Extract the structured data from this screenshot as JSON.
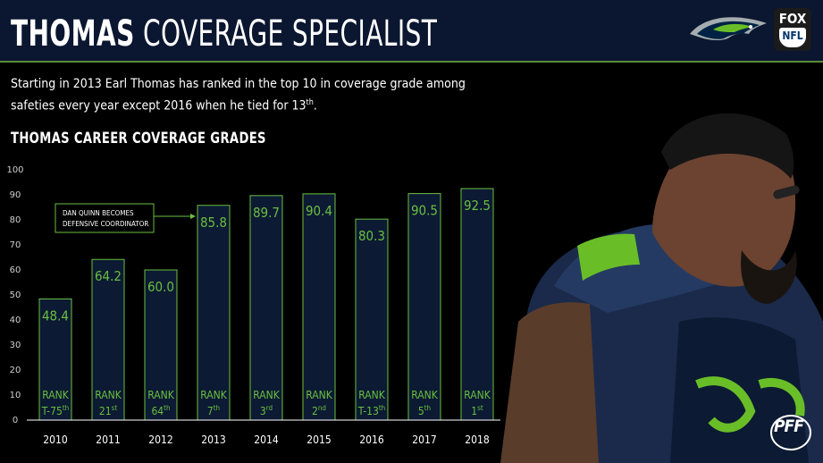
{
  "header": {
    "title_bold": "THOMAS",
    "title_light": "COVERAGE SPECIALIST",
    "network_logo_top": "FOX",
    "network_logo_bottom": "NFL",
    "team_logo": "seahawks-logo"
  },
  "description": {
    "text": "Starting in 2013 Earl Thomas has ranked in the top 10 in coverage grade among safeties every year except 2016 when he tied for 13",
    "superscript": "th",
    "end": "."
  },
  "annotation": {
    "line1": "DAN QUINN BECOMES",
    "line2": "DEFENSIVE COORDINATOR"
  },
  "watermark": "PFF",
  "colors": {
    "header_bg": "#0b1630",
    "accent_green": "#6abf3e",
    "bar_fill": "#0c1a33",
    "axis_text": "#cfcfcf"
  },
  "chart_data": {
    "type": "bar",
    "title": "THOMAS CAREER COVERAGE GRADES",
    "categories": [
      "2010",
      "2011",
      "2012",
      "2013",
      "2014",
      "2015",
      "2016",
      "2017",
      "2018"
    ],
    "values": [
      48.4,
      64.2,
      60.0,
      85.8,
      89.7,
      90.4,
      80.3,
      90.5,
      92.5
    ],
    "value_labels": [
      "48.4",
      "64.2",
      "60.0",
      "85.8",
      "89.7",
      "90.4",
      "80.3",
      "90.5",
      "92.5"
    ],
    "rank_label": "RANK",
    "ranks": [
      {
        "main": "T-75",
        "sup": "th"
      },
      {
        "main": "21",
        "sup": "st"
      },
      {
        "main": "64",
        "sup": "th"
      },
      {
        "main": "7",
        "sup": "th"
      },
      {
        "main": "3",
        "sup": "rd"
      },
      {
        "main": "2",
        "sup": "nd"
      },
      {
        "main": "T-13",
        "sup": "th"
      },
      {
        "main": "5",
        "sup": "th"
      },
      {
        "main": "1",
        "sup": "st"
      }
    ],
    "y_ticks": [
      0,
      10,
      20,
      30,
      40,
      50,
      60,
      70,
      80,
      90,
      100
    ],
    "ylim": [
      0,
      100
    ],
    "grid": false,
    "xlabel": "",
    "ylabel": ""
  }
}
